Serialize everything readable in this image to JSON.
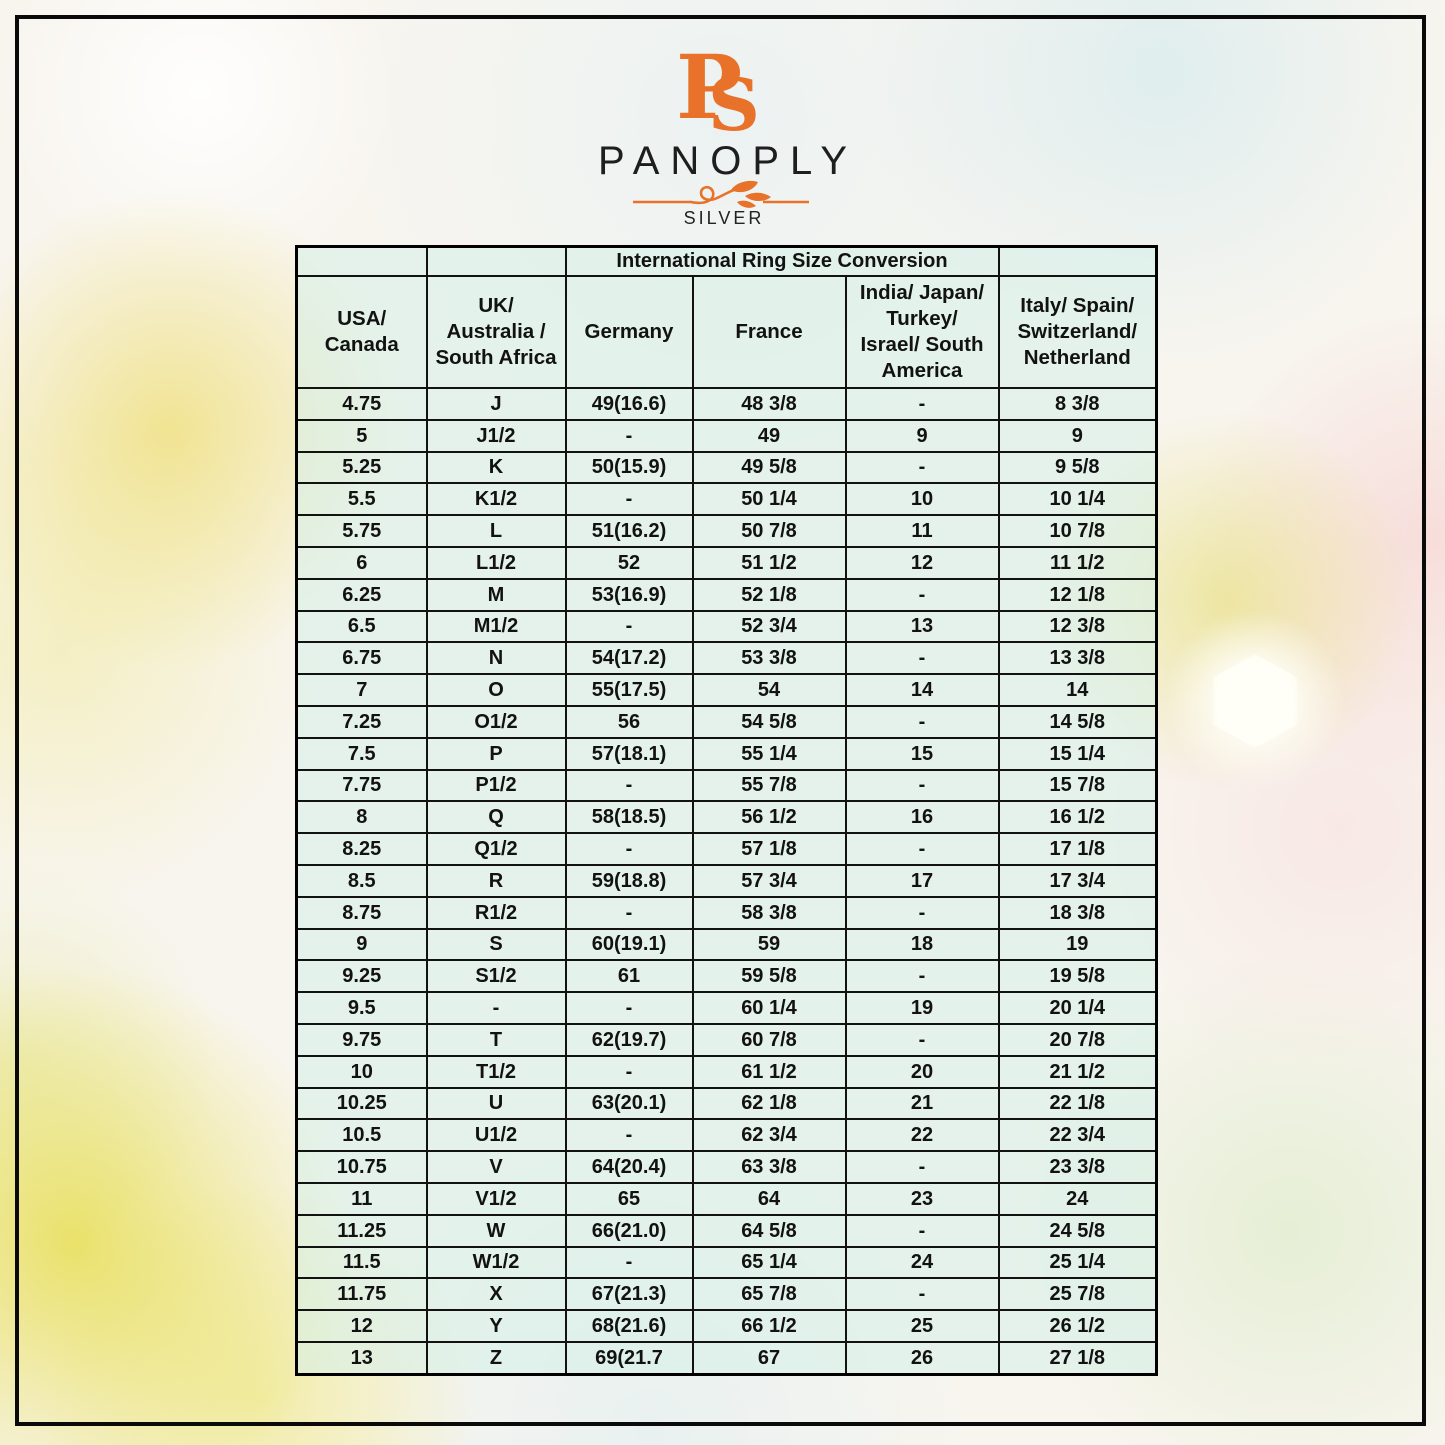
{
  "brand": {
    "monogram_letters": [
      "P",
      "S"
    ],
    "name": "PANOPLY",
    "subtitle": "SILVER",
    "accent_color": "#E8722A"
  },
  "table": {
    "title": "International Ring Size Conversion",
    "headers": [
      "USA/\nCanada",
      "UK/\nAustralia /\nSouth Africa",
      "Germany",
      "France",
      "India/ Japan/\nTurkey/\nIsrael/ South\nAmerica",
      "Italy/ Spain/\nSwitzerland/\nNetherland"
    ],
    "rows": [
      [
        "4.75",
        "J",
        "49(16.6)",
        "48 3/8",
        "-",
        "8 3/8"
      ],
      [
        "5",
        "J1/2",
        "-",
        "49",
        "9",
        "9"
      ],
      [
        "5.25",
        "K",
        "50(15.9)",
        "49 5/8",
        "-",
        "9 5/8"
      ],
      [
        "5.5",
        "K1/2",
        "-",
        "50 1/4",
        "10",
        "10 1/4"
      ],
      [
        "5.75",
        "L",
        "51(16.2)",
        "50 7/8",
        "11",
        "10 7/8"
      ],
      [
        "6",
        "L1/2",
        "52",
        "51 1/2",
        "12",
        "11 1/2"
      ],
      [
        "6.25",
        "M",
        "53(16.9)",
        "52 1/8",
        "-",
        "12 1/8"
      ],
      [
        "6.5",
        "M1/2",
        "-",
        "52 3/4",
        "13",
        "12 3/8"
      ],
      [
        "6.75",
        "N",
        "54(17.2)",
        "53 3/8",
        "-",
        "13 3/8"
      ],
      [
        "7",
        "O",
        "55(17.5)",
        "54",
        "14",
        "14"
      ],
      [
        "7.25",
        "O1/2",
        "56",
        "54 5/8",
        "-",
        "14 5/8"
      ],
      [
        "7.5",
        "P",
        "57(18.1)",
        "55 1/4",
        "15",
        "15 1/4"
      ],
      [
        "7.75",
        "P1/2",
        "-",
        "55 7/8",
        "-",
        "15 7/8"
      ],
      [
        "8",
        "Q",
        "58(18.5)",
        "56 1/2",
        "16",
        "16 1/2"
      ],
      [
        "8.25",
        "Q1/2",
        "-",
        "57 1/8",
        "-",
        "17 1/8"
      ],
      [
        "8.5",
        "R",
        "59(18.8)",
        "57 3/4",
        "17",
        "17 3/4"
      ],
      [
        "8.75",
        "R1/2",
        "-",
        "58 3/8",
        "-",
        "18 3/8"
      ],
      [
        "9",
        "S",
        "60(19.1)",
        "59",
        "18",
        "19"
      ],
      [
        "9.25",
        "S1/2",
        "61",
        "59 5/8",
        "-",
        "19 5/8"
      ],
      [
        "9.5",
        "-",
        "-",
        "60 1/4",
        "19",
        "20 1/4"
      ],
      [
        "9.75",
        "T",
        "62(19.7)",
        "60 7/8",
        "-",
        "20 7/8"
      ],
      [
        "10",
        "T1/2",
        "-",
        "61 1/2",
        "20",
        "21 1/2"
      ],
      [
        "10.25",
        "U",
        "63(20.1)",
        "62 1/8",
        "21",
        "22 1/8"
      ],
      [
        "10.5",
        "U1/2",
        "-",
        "62 3/4",
        "22",
        "22 3/4"
      ],
      [
        "10.75",
        "V",
        "64(20.4)",
        "63 3/8",
        "-",
        "23 3/8"
      ],
      [
        "11",
        "V1/2",
        "65",
        "64",
        "23",
        "24"
      ],
      [
        "11.25",
        "W",
        "66(21.0)",
        "64 5/8",
        "-",
        "24 5/8"
      ],
      [
        "11.5",
        "W1/2",
        "-",
        "65 1/4",
        "24",
        "25 1/4"
      ],
      [
        "11.75",
        "X",
        "67(21.3)",
        "65 7/8",
        "-",
        "25 7/8"
      ],
      [
        "12",
        "Y",
        "68(21.6)",
        "66 1/2",
        "25",
        "26 1/2"
      ],
      [
        "13",
        "Z",
        "69(21.7",
        "67",
        "26",
        "27 1/8"
      ]
    ]
  }
}
